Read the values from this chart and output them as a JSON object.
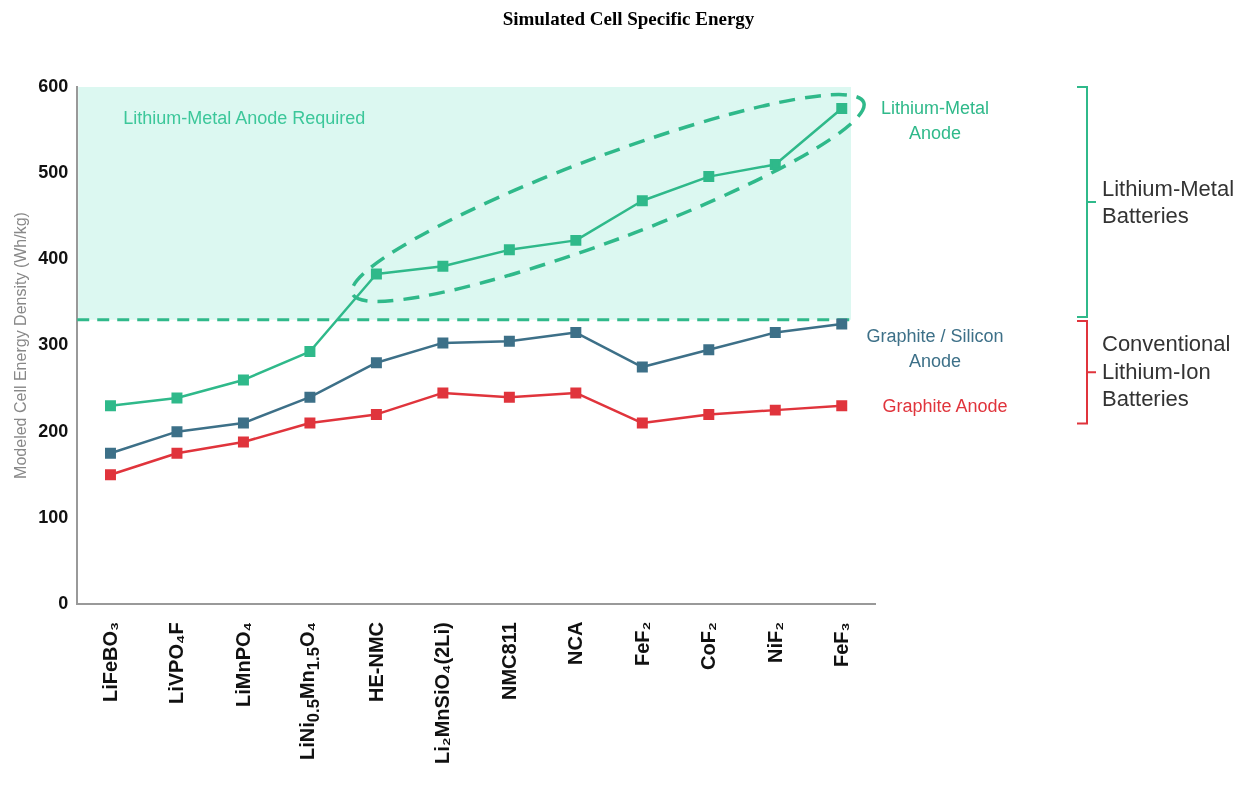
{
  "chart_data": {
    "type": "line",
    "title": "Simulated Cell Specific Energy",
    "ylabel": "Modeled Cell Energy Density (Wh/kg)",
    "categories": [
      "LiFeBO₃",
      "LiVPO₄F",
      "LiMnPO₄",
      "LiNi$_{0.5}$Mn$_{1.5}$O₄",
      "HE-NMC",
      "Li₂MnSiO₄(2Li)",
      "NMC811",
      "NCA",
      "FeF₂",
      "CoF₂",
      "NiF₂",
      "FeF₃"
    ],
    "series": [
      {
        "name": "Lithium-Metal Anode",
        "color": "#2fb98a",
        "values": [
          230,
          239,
          260,
          293,
          383,
          392,
          411,
          422,
          468,
          496,
          510,
          575
        ]
      },
      {
        "name": "Graphite / Silicon Anode",
        "color": "#3d7088",
        "values": [
          175,
          200,
          210,
          240,
          280,
          303,
          305,
          315,
          275,
          295,
          315,
          325
        ]
      },
      {
        "name": "Graphite Anode",
        "color": "#e0343c",
        "values": [
          150,
          175,
          188,
          210,
          220,
          245,
          240,
          245,
          210,
          220,
          225,
          230
        ]
      }
    ],
    "ylim": [
      0,
      600
    ],
    "yticks": [
      0,
      100,
      200,
      300,
      400,
      500,
      600
    ],
    "bands": [
      {
        "axis": "y",
        "from": 330,
        "to": 600,
        "label": "Lithium-Metal Anode Required",
        "color": "#dcf8f1"
      }
    ],
    "ref_lines": [
      {
        "axis": "y",
        "value": 330,
        "color": "#2fb98a",
        "line_style": "dashed"
      }
    ],
    "annotations": [
      "Lithium-Metal Batteries",
      "Conventional Lithium-Ion Batteries"
    ],
    "marker": "square",
    "line_style": "solid",
    "legend": false
  }
}
